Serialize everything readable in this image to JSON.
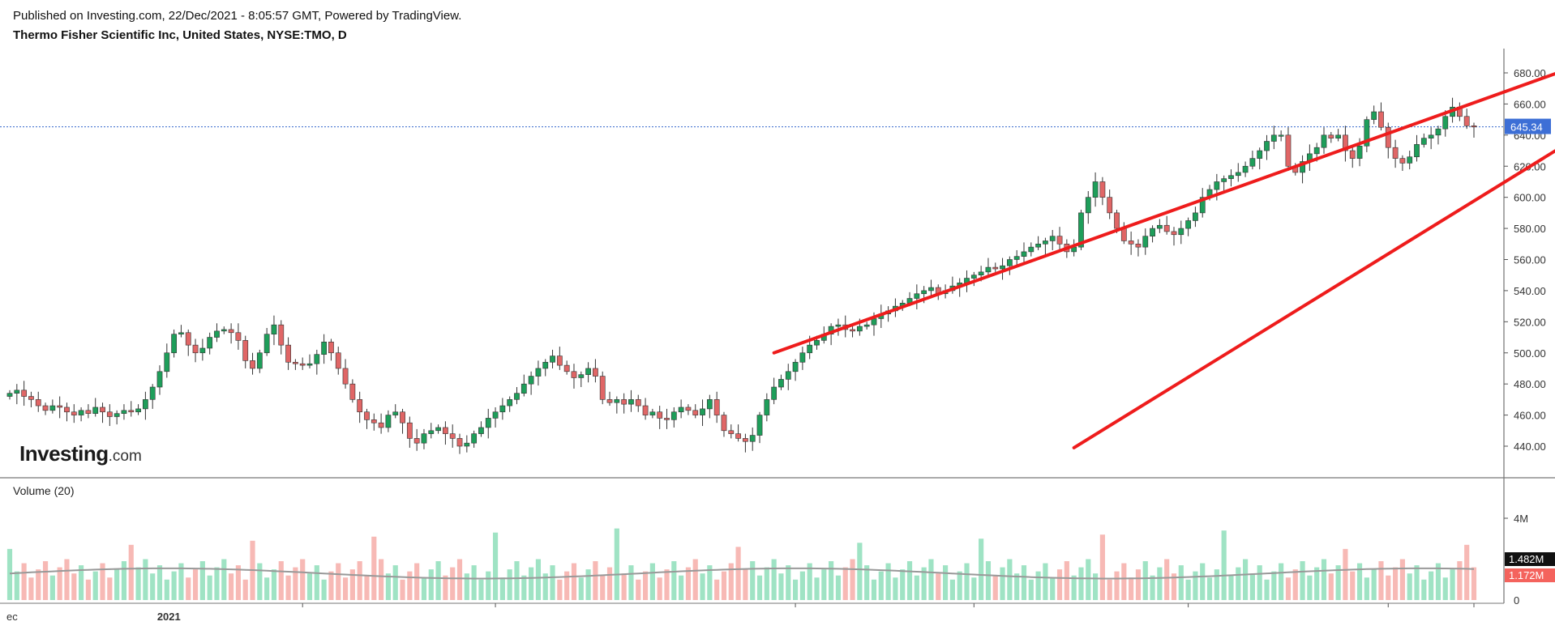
{
  "header": {
    "published": "Published on Investing.com, 22/Dec/2021 - 8:05:57 GMT, Powered by TradingView.",
    "symbol_line": "Thermo Fisher Scientific Inc, United States, NYSE:TMO, D"
  },
  "logo": {
    "main": "Investing",
    "suffix": ".com"
  },
  "volume_panel": {
    "label": "Volume (20)",
    "ticks": [
      "4M",
      "0"
    ],
    "badge_high": "1.482M",
    "badge_low": "1.172M"
  },
  "colors": {
    "up": "#26a69a",
    "up_body": "#1e9e5a",
    "down": "#d9534f",
    "down_body": "#e06666",
    "vol_up": "#9fe3c4",
    "vol_down": "#f7b9b5",
    "trendline": "#ee1c1c",
    "price_line": "#3366cc",
    "ma": "#999999"
  },
  "chart_data": {
    "type": "candlestick",
    "symbol": "NYSE:TMO",
    "interval": "D",
    "y_ticks": [
      440,
      460,
      480,
      500,
      520,
      540,
      560,
      580,
      600,
      620,
      640,
      660,
      680
    ],
    "y_tick_labels": [
      "440.00",
      "460.00",
      "480.00",
      "500.00",
      "520.00",
      "540.00",
      "560.00",
      "580.00",
      "600.00",
      "620.00",
      "640.00",
      "660.00",
      "680.00"
    ],
    "ylim": [
      420,
      690
    ],
    "x_labels": [
      {
        "index": 0,
        "label": "ec"
      },
      {
        "index": 22,
        "label": "2021"
      }
    ],
    "last_price": 645.34,
    "last_price_label": "645.34",
    "closes": [
      474,
      476,
      472,
      470,
      466,
      463,
      466,
      465,
      462,
      460,
      463,
      461,
      465,
      462,
      459,
      461,
      463,
      462,
      464,
      470,
      478,
      488,
      500,
      512,
      513,
      505,
      500,
      503,
      510,
      514,
      515,
      513,
      508,
      495,
      490,
      500,
      512,
      518,
      505,
      494,
      493,
      492,
      493,
      499,
      507,
      500,
      490,
      480,
      470,
      462,
      457,
      455,
      452,
      460,
      462,
      455,
      445,
      442,
      448,
      450,
      452,
      448,
      445,
      440,
      442,
      448,
      452,
      458,
      462,
      466,
      470,
      474,
      480,
      485,
      490,
      494,
      498,
      492,
      488,
      484,
      486,
      490,
      485,
      470,
      468,
      470,
      467,
      470,
      466,
      460,
      462,
      458,
      457,
      462,
      465,
      463,
      460,
      464,
      470,
      460,
      450,
      448,
      445,
      443,
      447,
      460,
      470,
      478,
      483,
      488,
      494,
      500,
      505,
      508,
      512,
      517,
      518,
      515,
      514,
      517,
      518,
      522,
      525,
      527,
      530,
      532,
      535,
      538,
      540,
      542,
      538,
      540,
      543,
      545,
      548,
      550,
      552,
      555,
      554,
      556,
      560,
      562,
      565,
      568,
      570,
      572,
      575,
      570,
      565,
      568,
      590,
      600,
      610,
      600,
      590,
      580,
      572,
      570,
      568,
      575,
      580,
      582,
      578,
      576,
      580,
      585,
      590,
      600,
      605,
      610,
      612,
      614,
      616,
      620,
      625,
      630,
      636,
      640,
      640,
      620,
      616,
      623,
      628,
      632,
      640,
      638,
      640,
      630,
      625,
      633,
      650,
      655,
      645,
      632,
      625,
      622,
      626,
      634,
      638,
      640,
      644,
      652,
      658,
      652,
      646,
      645.34
    ],
    "opens_offset_note": "",
    "volume_ma_last": 1.482,
    "volume_last": 1.172,
    "trendlines": [
      {
        "name": "upper",
        "from": {
          "index": 107,
          "price": 500
        },
        "to": {
          "index": 214,
          "price": 683
        }
      },
      {
        "name": "lower",
        "from": {
          "index": 149,
          "price": 439
        },
        "to": {
          "index": 214,
          "price": 636
        }
      }
    ]
  }
}
